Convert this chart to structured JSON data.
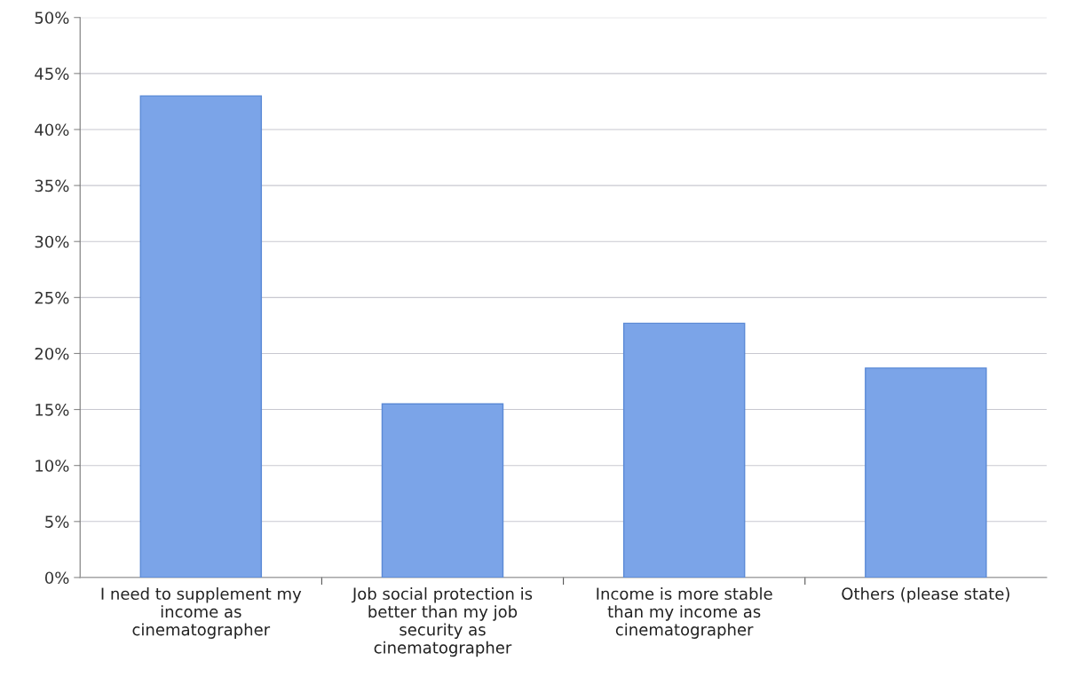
{
  "chart_data": {
    "type": "bar",
    "categories": [
      "I need to supplement my\nincome as\ncinematographer",
      "Job social protection is\nbetter than my job\nsecurity as\ncinematographer",
      "Income is more stable\nthan my income as\ncinematographer",
      "Others (please state)"
    ],
    "values": [
      43.0,
      15.5,
      22.7,
      18.7
    ],
    "color": "#7ba4e8",
    "ylim": [
      0,
      50
    ],
    "yticks": [
      {
        "value": 0,
        "label": "0%"
      },
      {
        "value": 5,
        "label": "5%"
      },
      {
        "value": 10,
        "label": "10%"
      },
      {
        "value": 15,
        "label": "15%"
      },
      {
        "value": 20,
        "label": "20%"
      },
      {
        "value": 25,
        "label": "25%"
      },
      {
        "value": 30,
        "label": "30%"
      },
      {
        "value": 35,
        "label": "35%"
      },
      {
        "value": 40,
        "label": "40%"
      },
      {
        "value": 45,
        "label": "45%"
      },
      {
        "value": 50,
        "label": "50%"
      }
    ],
    "grid": "y"
  }
}
